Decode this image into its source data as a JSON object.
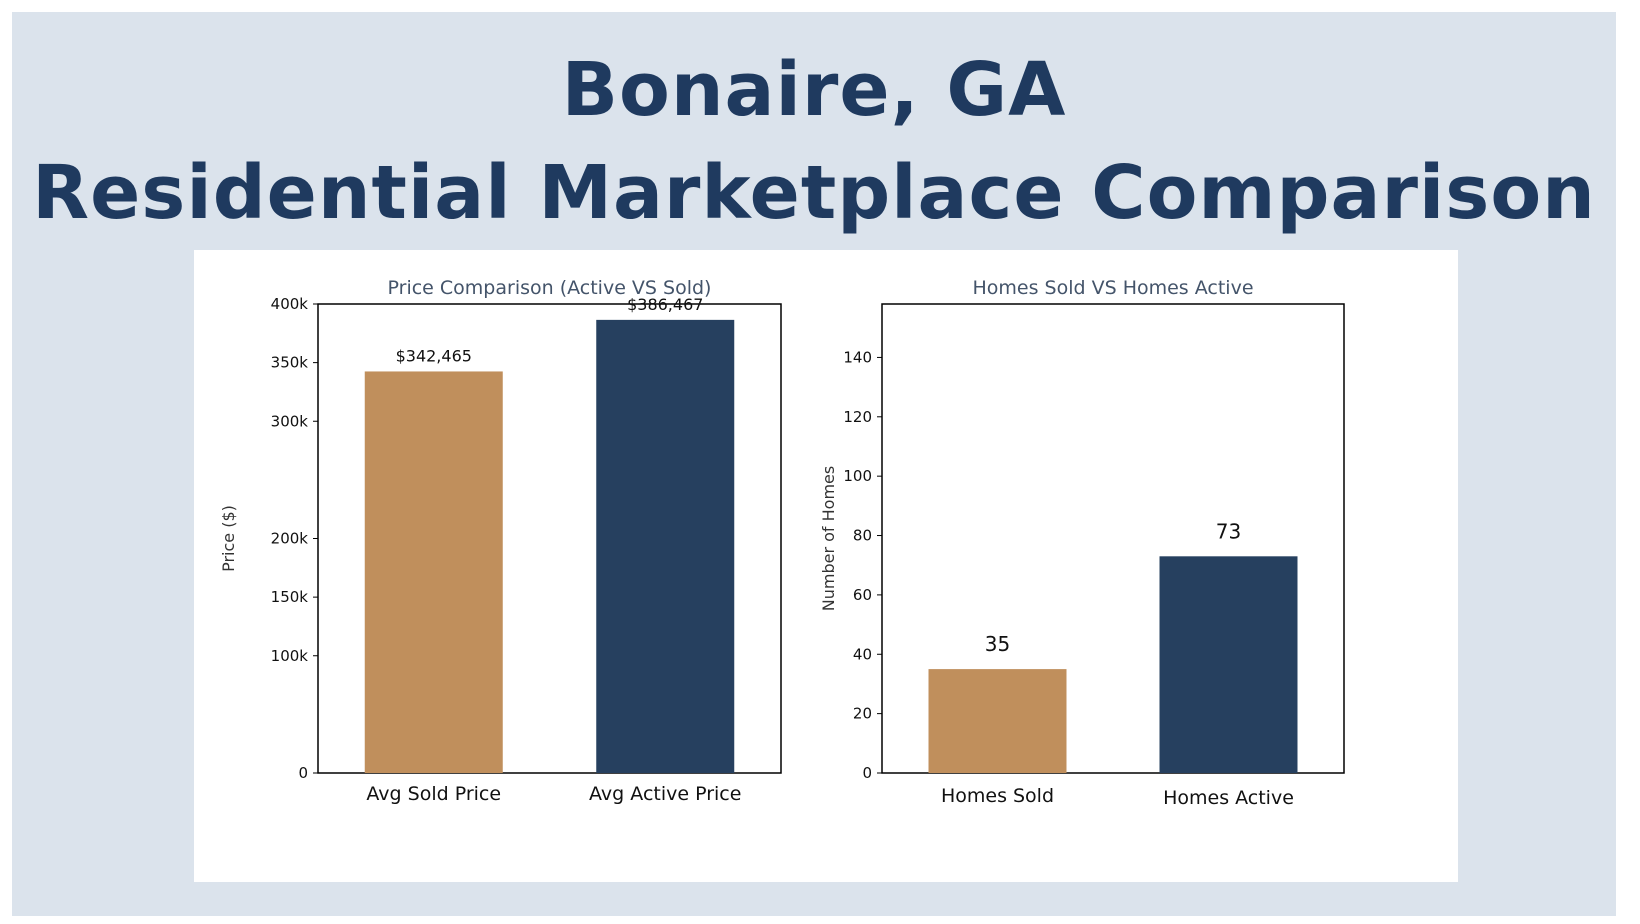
{
  "header": {
    "title_line1": "Bonaire, GA",
    "title_line2": "Residential Marketplace Comparison"
  },
  "colors": {
    "background": "#dbe3ec",
    "title": "#1f3a5f",
    "sold": "#c08f5c",
    "active": "#26405f"
  },
  "chart_data": [
    {
      "type": "bar",
      "title": "Price Comparison (Active VS Sold)",
      "categories": [
        "Avg Sold Price",
        "Avg Active Price"
      ],
      "values": [
        342465,
        386467
      ],
      "data_labels": [
        "$342,465",
        "$386,467"
      ],
      "ylabel": "Price ($)",
      "xlabel": "",
      "ylim": [
        0,
        400000
      ],
      "yticks": [
        0,
        100000,
        150000,
        200000,
        300000,
        350000,
        400000
      ],
      "ytick_labels": [
        "0",
        "100k",
        "150k",
        "200k",
        "300k",
        "350k",
        "400k"
      ],
      "grid": false
    },
    {
      "type": "bar",
      "title": "Homes Sold VS Homes Active",
      "categories": [
        "Homes Sold",
        "Homes Active"
      ],
      "values": [
        35,
        73
      ],
      "data_labels": [
        "35",
        "73"
      ],
      "ylabel": "Number of Homes",
      "xlabel": "",
      "ylim": [
        0,
        158
      ],
      "yticks": [
        0,
        20,
        40,
        60,
        80,
        100,
        120,
        140
      ],
      "ytick_labels": [
        "0",
        "20",
        "40",
        "60",
        "80",
        "100",
        "120",
        "140"
      ],
      "grid": false
    }
  ]
}
